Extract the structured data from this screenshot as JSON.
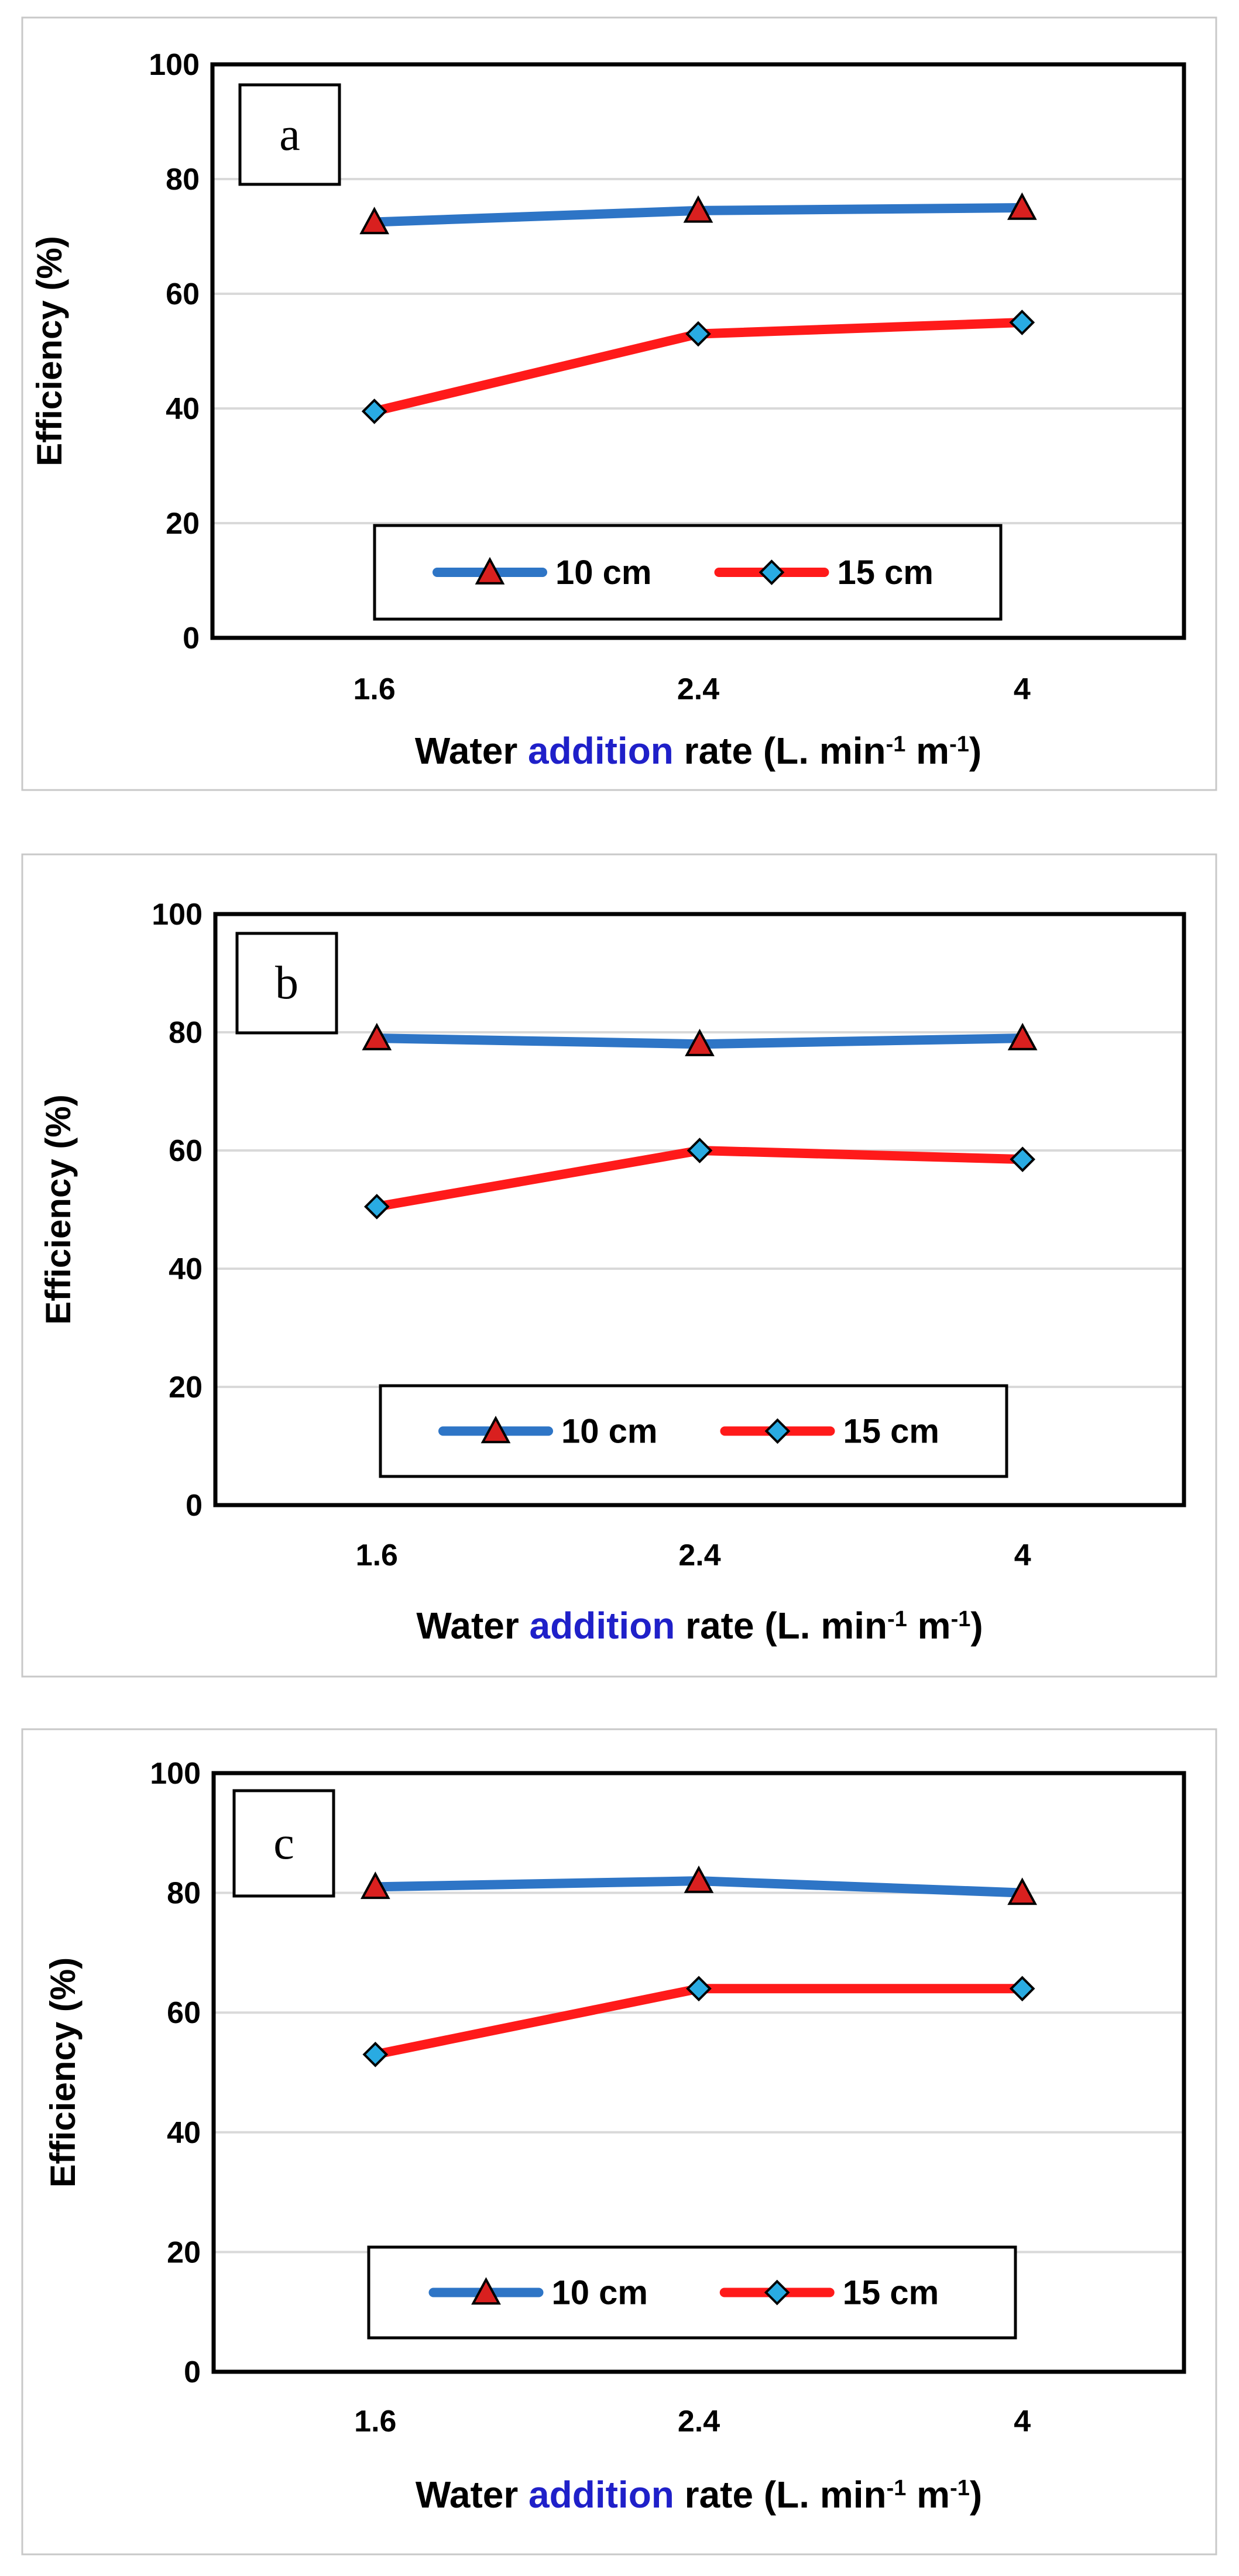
{
  "chart_data": [
    {
      "type": "line",
      "panel_label": "a",
      "categories": [
        "1.6",
        "2.4",
        "4"
      ],
      "series": [
        {
          "name": "10 cm",
          "values": [
            72.5,
            74.5,
            75
          ],
          "color": "#2E75C6",
          "marker": "triangle",
          "marker_color": "#D9201F"
        },
        {
          "name": "15 cm",
          "values": [
            39.5,
            53,
            55
          ],
          "color": "#FF1A1A",
          "marker": "diamond",
          "marker_color": "#29ABE2"
        }
      ],
      "ylabel": "Efficiency (%)",
      "xlabel_parts": {
        "pre": "Water ",
        "blue": "addition",
        "post": " rate (L. min",
        "sup1": "-1",
        "mid": " m",
        "sup2": "-1",
        "end": ")"
      },
      "yticks": [
        "0",
        "20",
        "40",
        "60",
        "80",
        "100"
      ],
      "ylim": [
        0,
        100
      ],
      "grid": true,
      "legend": "bottom-center"
    },
    {
      "type": "line",
      "panel_label": "b",
      "categories": [
        "1.6",
        "2.4",
        "4"
      ],
      "series": [
        {
          "name": "10 cm",
          "values": [
            79,
            78,
            79
          ],
          "color": "#2E75C6",
          "marker": "triangle",
          "marker_color": "#D9201F"
        },
        {
          "name": "15 cm",
          "values": [
            50.5,
            60,
            58.5
          ],
          "color": "#FF1A1A",
          "marker": "diamond",
          "marker_color": "#29ABE2"
        }
      ],
      "ylabel": "Efficiency (%)",
      "xlabel_parts": {
        "pre": "Water ",
        "blue": "addition",
        "post": " rate (L. min",
        "sup1": "-1",
        "mid": " m",
        "sup2": "-1",
        "end": ")"
      },
      "yticks": [
        "0",
        "20",
        "40",
        "60",
        "80",
        "100"
      ],
      "ylim": [
        0,
        100
      ],
      "grid": true,
      "legend": "bottom-center"
    },
    {
      "type": "line",
      "panel_label": "c",
      "categories": [
        "1.6",
        "2.4",
        "4"
      ],
      "series": [
        {
          "name": "10 cm",
          "values": [
            81,
            82,
            80
          ],
          "color": "#2E75C6",
          "marker": "triangle",
          "marker_color": "#D9201F"
        },
        {
          "name": "15 cm",
          "values": [
            53,
            64,
            64
          ],
          "color": "#FF1A1A",
          "marker": "diamond",
          "marker_color": "#29ABE2"
        }
      ],
      "ylabel": "Efficiency (%)",
      "xlabel_parts": {
        "pre": "Water ",
        "blue": "addition",
        "post": " rate (L. min",
        "sup1": "-1",
        "mid": " m",
        "sup2": "-1",
        "end": ")"
      },
      "yticks": [
        "0",
        "20",
        "40",
        "60",
        "80",
        "100"
      ],
      "ylim": [
        0,
        100
      ],
      "grid": true,
      "legend": "bottom-center"
    }
  ]
}
